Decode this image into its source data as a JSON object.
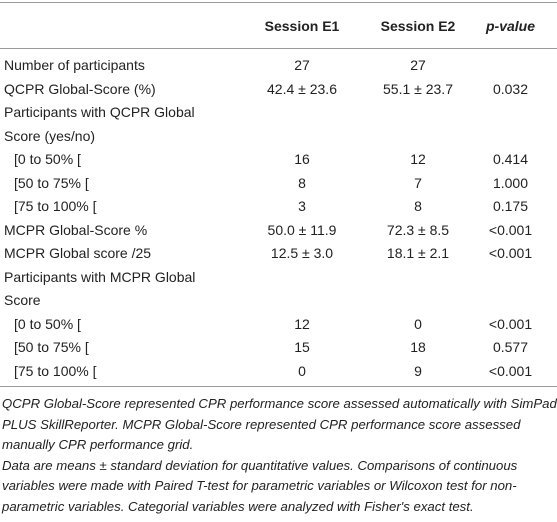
{
  "table": {
    "header": [
      "Session E1",
      "Session E2",
      "p-value"
    ],
    "rows": [
      [
        "Number of participants",
        "27",
        "27"
      ],
      [
        "QCPR Global-Score (%)",
        "42.4 ± 23.6",
        "55.1 ± 23.7",
        "0.032"
      ],
      [
        "Participants with QCPR Global Score (yes/no)"
      ],
      [
        "[0 to 50% [",
        "16",
        "12",
        "0.414"
      ],
      [
        "[50 to 75% [",
        "8",
        "7",
        "1.000"
      ],
      [
        "[75 to 100% [",
        "3",
        "8",
        "0.175"
      ],
      [
        "MCPR Global-Score %",
        "50.0 ± 11.9",
        "72.3 ± 8.5",
        "<0.001"
      ],
      [
        "MCPR Global score /25",
        "12.5 ± 3.0",
        "18.1 ± 2.1",
        "<0.001"
      ],
      [
        "Participants with MCPR Global Score"
      ],
      [
        "[0 to 50% [",
        "12",
        "0",
        "<0.001"
      ],
      [
        "[50 to 75% [",
        "15",
        "18",
        "0.577"
      ],
      [
        "[75 to 100% [",
        "0",
        "9",
        "<0.001"
      ]
    ]
  },
  "notes": [
    "QCPR Global-Score represented CPR performance score assessed automatically with SimPad PLUS SkillReporter. MCPR Global-Score represented CPR performance score assessed manually CPR performance grid.",
    "Data are means ± standard deviation for quantitative values. Comparisons of continuous variables were made with Paired T-test for parametric variables or Wilcoxon test for non-parametric variables. Categorial variables were analyzed with Fisher's exact test."
  ]
}
